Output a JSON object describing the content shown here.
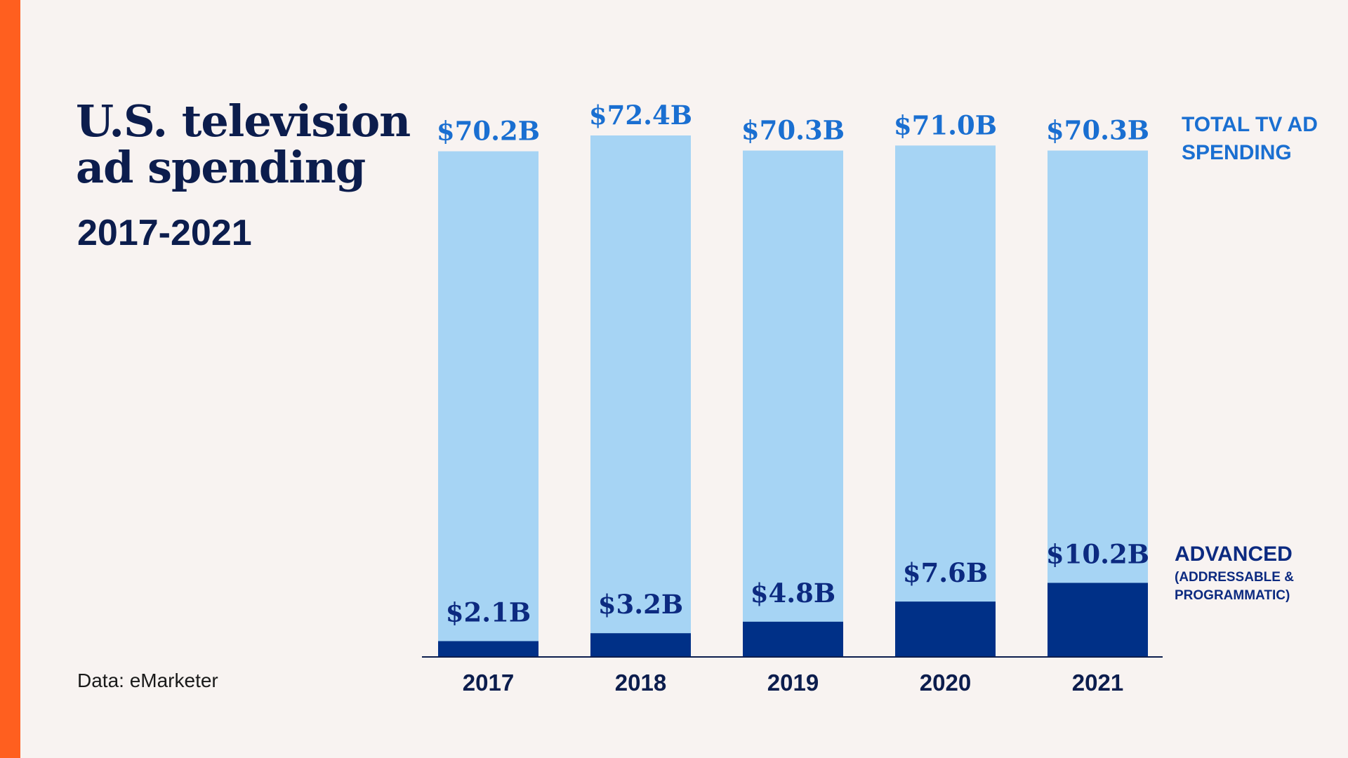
{
  "title": [
    "U.S. television",
    "ad spending"
  ],
  "subtitle": "2017-2021",
  "source": "Data: eMarketer",
  "legend": {
    "total": [
      "TOTAL TV AD",
      "SPENDING"
    ],
    "advanced": "ADVANCED",
    "advanced_sub": [
      "(ADDRESSABLE &",
      "PROGRAMMATIC)"
    ]
  },
  "colors": {
    "accent": "#ff5f1f",
    "total_bar": "#a6d4f4",
    "advanced_bar": "#003087",
    "total_label": "#1a6fd1",
    "advanced_label": "#0c2a80",
    "axis": "#0c1d4d",
    "background": "#f8f3f1"
  },
  "chart_data": {
    "type": "bar",
    "categories": [
      "2017",
      "2018",
      "2019",
      "2020",
      "2021"
    ],
    "series": [
      {
        "name": "TOTAL TV AD SPENDING",
        "values": [
          70.2,
          72.4,
          70.3,
          71.0,
          70.3
        ],
        "labels": [
          "$70.2B",
          "$72.4B",
          "$70.3B",
          "$71.0B",
          "$70.3B"
        ]
      },
      {
        "name": "ADVANCED (ADDRESSABLE & PROGRAMMATIC)",
        "values": [
          2.1,
          3.2,
          4.8,
          7.6,
          10.2
        ],
        "labels": [
          "$2.1B",
          "$3.2B",
          "$4.8B",
          "$7.6B",
          "$10.2B"
        ]
      }
    ],
    "title": "U.S. television ad spending 2017-2021",
    "xlabel": "",
    "ylabel": "",
    "ylim": [
      0,
      72.4
    ],
    "grid": false,
    "legend": "right"
  }
}
